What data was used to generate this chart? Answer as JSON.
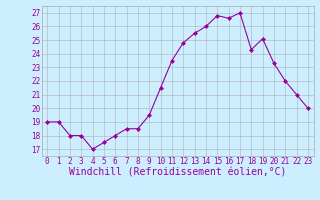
{
  "x": [
    0,
    1,
    2,
    3,
    4,
    5,
    6,
    7,
    8,
    9,
    10,
    11,
    12,
    13,
    14,
    15,
    16,
    17,
    18,
    19,
    20,
    21,
    22,
    23
  ],
  "y": [
    19,
    19,
    18,
    18,
    17,
    17.5,
    18,
    18.5,
    18.5,
    19.5,
    21.5,
    23.5,
    24.8,
    25.5,
    26,
    26.8,
    26.6,
    27,
    24.3,
    25.1,
    23.3,
    22,
    21,
    20
  ],
  "line_color": "#990099",
  "marker": "D",
  "marker_size": 2,
  "bg_color": "#cceeff",
  "grid_color": "#aaaaaa",
  "xlabel": "Windchill (Refroidissement éolien,°C)",
  "xlabel_color": "#990099",
  "tick_color": "#990099",
  "yticks": [
    17,
    18,
    19,
    20,
    21,
    22,
    23,
    24,
    25,
    26,
    27
  ],
  "xticks": [
    0,
    1,
    2,
    3,
    4,
    5,
    6,
    7,
    8,
    9,
    10,
    11,
    12,
    13,
    14,
    15,
    16,
    17,
    18,
    19,
    20,
    21,
    22,
    23
  ],
  "ylim": [
    16.5,
    27.5
  ],
  "xlim": [
    -0.5,
    23.5
  ],
  "tick_fontsize": 5.5,
  "xlabel_fontsize": 7.0,
  "linewidth": 0.8
}
